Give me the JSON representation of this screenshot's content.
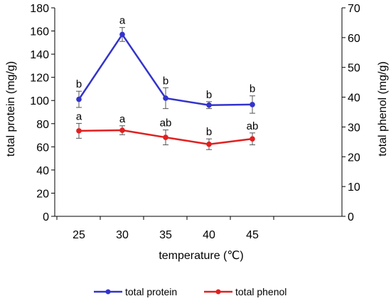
{
  "chart_data": {
    "type": "line",
    "x": [
      25,
      30,
      35,
      40,
      45
    ],
    "xlabel": "temperature (℃)",
    "ylabel_left": "total protein  (mg/g)",
    "ylabel_right": "total phenol  (mg/g)",
    "ylim_left": [
      0,
      180
    ],
    "ylim_right": [
      0,
      70
    ],
    "yticks_left": [
      0,
      20,
      40,
      60,
      80,
      100,
      120,
      140,
      160,
      180
    ],
    "yticks_right": [
      0,
      10,
      20,
      30,
      40,
      50,
      60,
      70
    ],
    "grid": false,
    "legend_position": "bottom",
    "series": [
      {
        "name": "total protein",
        "axis": "left",
        "color": "#3333cc",
        "values": [
          101,
          157,
          102,
          96,
          96.5
        ],
        "errors": [
          7,
          6,
          9,
          3,
          7.5
        ],
        "labels": [
          "b",
          "a",
          "b",
          "b",
          "b"
        ]
      },
      {
        "name": "total phenol",
        "axis": "right",
        "color": "#e02020",
        "values": [
          28.7,
          28.9,
          26.5,
          24.2,
          26
        ],
        "errors": [
          2.5,
          1.5,
          2.5,
          1.8,
          2
        ],
        "labels": [
          "a",
          "a",
          "ab",
          "b",
          "ab"
        ]
      }
    ]
  }
}
